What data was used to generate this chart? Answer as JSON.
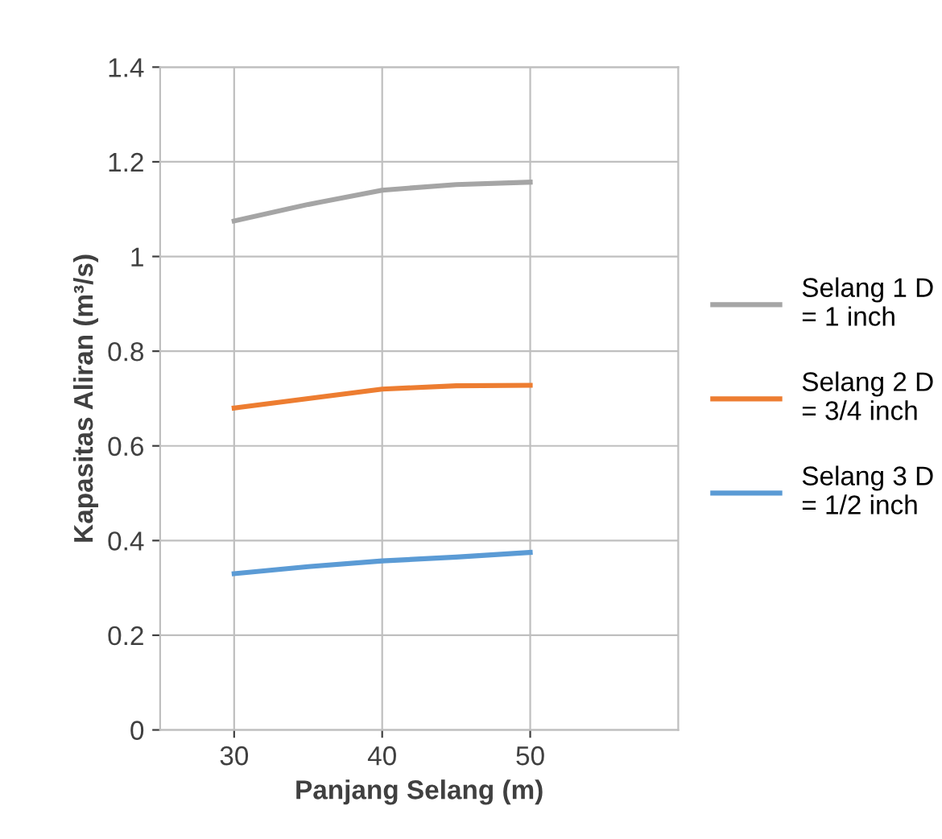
{
  "chart_data": {
    "type": "line",
    "xlabel": "Panjang Selang (m)",
    "ylabel": "Kapasitas Aliran (m³/s)",
    "xlim": [
      25,
      60
    ],
    "xticks": [
      30,
      40,
      50
    ],
    "ylim": [
      0,
      1.4
    ],
    "yticks": [
      0,
      0.2,
      0.4,
      0.6,
      0.8,
      1,
      1.2,
      1.4
    ],
    "grid": true,
    "legend": "right",
    "marker": "none",
    "line_style": "solid",
    "series": [
      {
        "name": "Selang 1 D = 1 inch",
        "color": "#a5a5a5",
        "x": [
          30,
          35,
          40,
          45,
          50
        ],
        "values": [
          1.075,
          1.11,
          1.14,
          1.152,
          1.157
        ]
      },
      {
        "name": "Selang 2 D = 3/4 inch",
        "color": "#ed7d31",
        "x": [
          30,
          35,
          40,
          45,
          50
        ],
        "values": [
          0.68,
          0.7,
          0.72,
          0.727,
          0.728
        ]
      },
      {
        "name": "Selang 3 D = 1/2 inch",
        "color": "#5b9bd5",
        "x": [
          30,
          35,
          40,
          45,
          50
        ],
        "values": [
          0.33,
          0.345,
          0.357,
          0.365,
          0.375
        ]
      }
    ]
  }
}
